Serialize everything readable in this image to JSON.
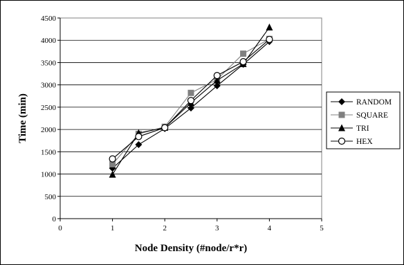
{
  "chart_data": {
    "type": "line",
    "title": "",
    "xlabel": "Node Density (#node/r*r)",
    "ylabel": "Time (min)",
    "xlim": [
      0,
      5
    ],
    "ylim": [
      0,
      4500
    ],
    "x_ticks": [
      "0",
      "1",
      "2",
      "3",
      "4",
      "5"
    ],
    "y_ticks": [
      "0",
      "500",
      "1000",
      "1500",
      "2000",
      "2500",
      "3000",
      "3500",
      "4000",
      "4500"
    ],
    "grid": "horizontal",
    "legend_position": "right",
    "x": [
      1,
      1.5,
      2,
      2.5,
      3,
      3.5,
      4
    ],
    "series": [
      {
        "name": "RANDOM",
        "marker": "diamond",
        "color": "#000000",
        "values": [
          1130,
          1660,
          2020,
          2480,
          2980,
          3460,
          3970
        ]
      },
      {
        "name": "SQUARE",
        "marker": "square",
        "color": "#808080",
        "values": [
          1220,
          1900,
          2060,
          2820,
          3120,
          3700,
          4030
        ]
      },
      {
        "name": "TRI",
        "marker": "triangle",
        "color": "#000000",
        "values": [
          990,
          1920,
          2040,
          2600,
          3100,
          3470,
          4290
        ]
      },
      {
        "name": "HEX",
        "marker": "circle",
        "color": "#000000",
        "values": [
          1340,
          1840,
          2040,
          2650,
          3210,
          3520,
          4020
        ]
      }
    ]
  }
}
